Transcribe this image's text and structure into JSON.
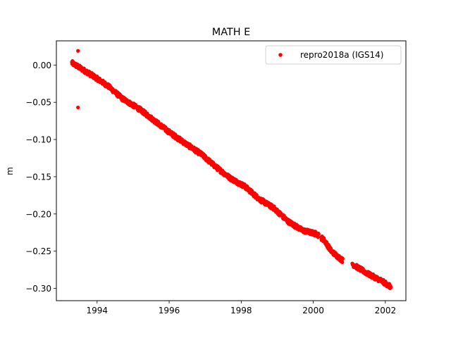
{
  "chart_data": {
    "type": "scatter",
    "title": "MATH E",
    "xlabel": "",
    "ylabel": "m",
    "xlim": [
      1992.87,
      2002.57
    ],
    "ylim": [
      -0.3165,
      0.0325
    ],
    "xticks": [
      1994,
      1996,
      1998,
      2000,
      2002
    ],
    "xtick_labels": [
      "1994",
      "1996",
      "1998",
      "2000",
      "2002"
    ],
    "yticks": [
      0.0,
      -0.05,
      -0.1,
      -0.15,
      -0.2,
      -0.25,
      -0.3
    ],
    "ytick_labels": [
      "0.00",
      "−0.05",
      "−0.10",
      "−0.15",
      "−0.20",
      "−0.25",
      "−0.30"
    ],
    "grid": false,
    "legend_position": "upper right",
    "series": [
      {
        "name": "repro2018a (IGS14)",
        "color": "#ff0000",
        "marker": "circle",
        "trend": {
          "x": [
            1993.3,
            1993.5,
            1993.9,
            1994.3,
            1994.7,
            1995.2,
            1995.6,
            1996.0,
            1996.5,
            1996.9,
            1997.3,
            1997.7,
            1998.1,
            1998.5,
            1998.9,
            1999.3,
            1999.7,
            2000.1,
            2000.3,
            2000.5,
            2000.8,
            2001.1,
            2001.5,
            2001.9,
            2002.15
          ],
          "y": [
            0.003,
            -0.003,
            -0.015,
            -0.028,
            -0.045,
            -0.06,
            -0.075,
            -0.09,
            -0.107,
            -0.12,
            -0.137,
            -0.152,
            -0.163,
            -0.18,
            -0.192,
            -0.21,
            -0.222,
            -0.227,
            -0.235,
            -0.25,
            -0.262,
            -0.268,
            -0.28,
            -0.29,
            -0.298
          ]
        },
        "gaps": [
          [
            2000.15,
            2000.22
          ],
          [
            2000.82,
            2001.08
          ]
        ],
        "outliers": [
          {
            "x": 1993.47,
            "y": 0.019
          },
          {
            "x": 1993.47,
            "y": -0.057
          }
        ]
      }
    ]
  }
}
